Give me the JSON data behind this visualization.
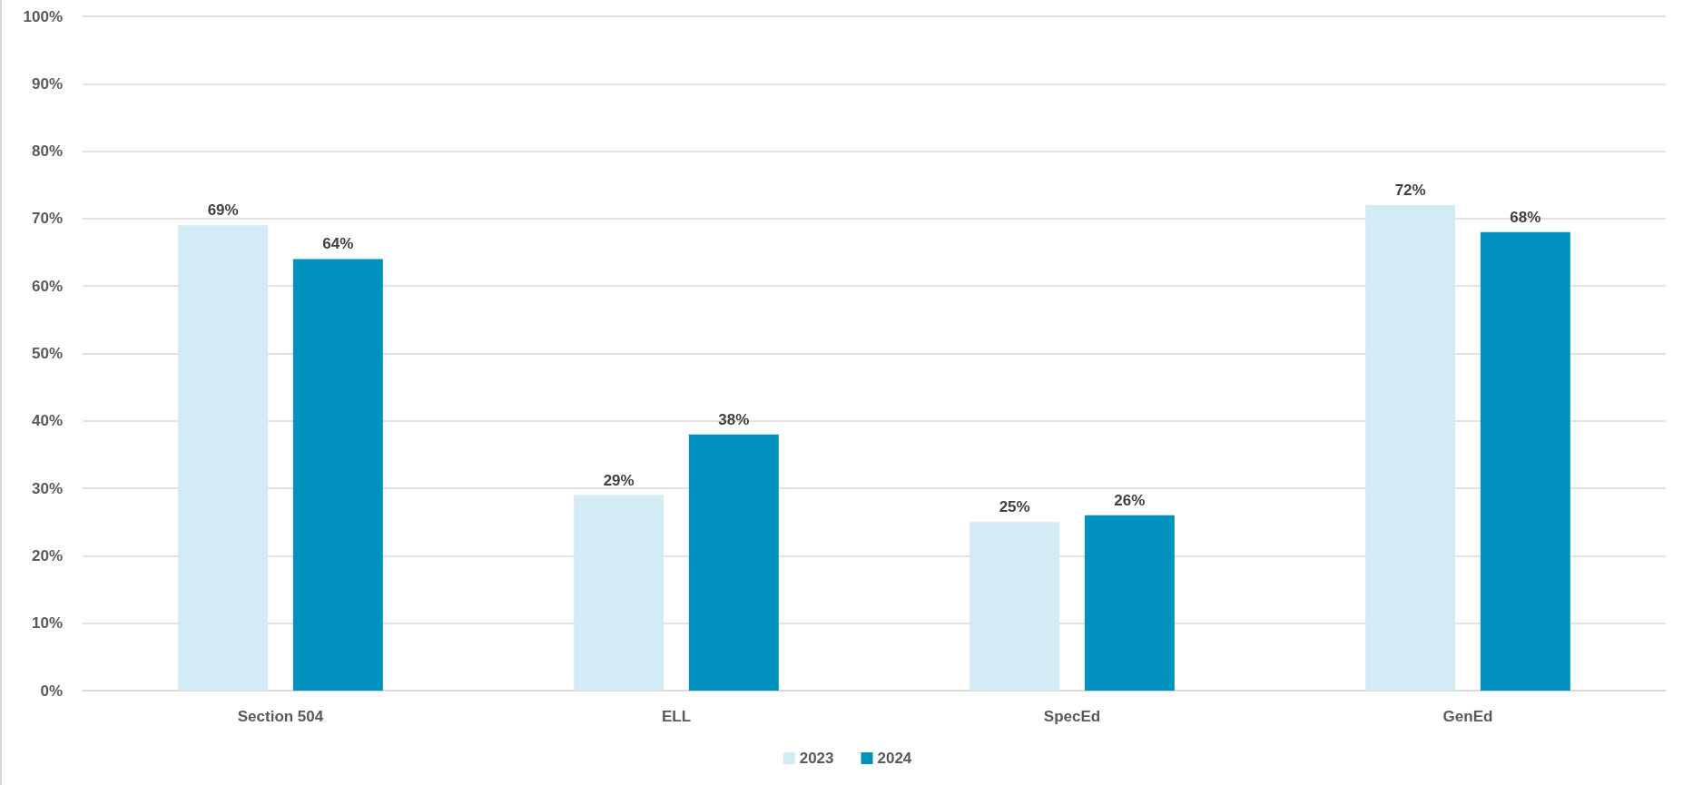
{
  "chart_data": {
    "type": "bar",
    "categories": [
      "Section 504",
      "ELL",
      "SpecEd",
      "GenEd"
    ],
    "series": [
      {
        "name": "2023",
        "color": "#d3ebf4",
        "values": [
          69,
          29,
          25,
          72
        ],
        "value_labels": [
          "69%",
          "29%",
          "25%",
          "72%"
        ]
      },
      {
        "name": "2024",
        "color": "#0091be",
        "values": [
          64,
          38,
          26,
          68
        ],
        "value_labels": [
          "64%",
          "38%",
          "26%",
          "68%"
        ]
      }
    ],
    "ylim": [
      0,
      100
    ],
    "yticks": [
      {
        "value": 0,
        "label": "0%"
      },
      {
        "value": 10,
        "label": "10%"
      },
      {
        "value": 20,
        "label": "20%"
      },
      {
        "value": 30,
        "label": "30%"
      },
      {
        "value": 40,
        "label": "40%"
      },
      {
        "value": 50,
        "label": "50%"
      },
      {
        "value": 60,
        "label": "60%"
      },
      {
        "value": 70,
        "label": "70%"
      },
      {
        "value": 80,
        "label": "80%"
      },
      {
        "value": 90,
        "label": "90%"
      },
      {
        "value": 100,
        "label": "100%"
      }
    ],
    "grid": "y",
    "legend": "bottom"
  }
}
